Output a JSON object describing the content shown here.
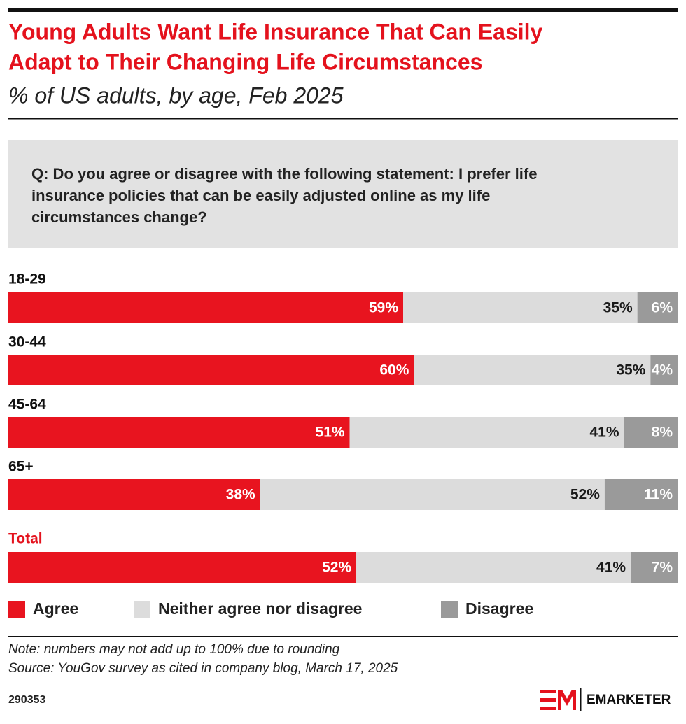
{
  "chart_data": {
    "type": "stacked-bar-horizontal",
    "title": "Young Adults Want Life Insurance That Can Easily Adapt to Their Changing Life Circumstances",
    "subtitle": "% of US adults, by age, Feb 2025",
    "question": [
      "Q: Do you agree or disagree with the following statement: I prefer life",
      "insurance policies that can be easily adjusted online as my life",
      "circumstances change?"
    ],
    "categories": [
      "18-29",
      "30-44",
      "45-64",
      "65+",
      "Total"
    ],
    "series": [
      {
        "name": "Agree",
        "color": "#e8141f",
        "label_color": "#ffffff",
        "values": [
          59,
          60,
          51,
          38,
          52
        ],
        "value_labels": [
          "59%",
          "60%",
          "51%",
          "38%",
          "52%"
        ]
      },
      {
        "name": "Neither agree nor disagree",
        "color": "#dcdcdc",
        "label_color": "#1a1a1a",
        "values": [
          35,
          35,
          41,
          52,
          41
        ],
        "value_labels": [
          "35%",
          "35%",
          "41%",
          "52%",
          "41%"
        ]
      },
      {
        "name": "Disagree",
        "color": "#9a9a9a",
        "label_color": "#ffffff",
        "values": [
          6,
          4,
          8,
          11,
          7
        ],
        "value_labels": [
          "6%",
          "4%",
          "8%",
          "11%",
          "7%"
        ]
      }
    ],
    "note": "Note: numbers may not add up to 100% due to rounding",
    "source": "Source: YouGov survey as cited in company blog, March 17, 2025",
    "chart_id": "290353",
    "brand": "EMARKETER"
  }
}
